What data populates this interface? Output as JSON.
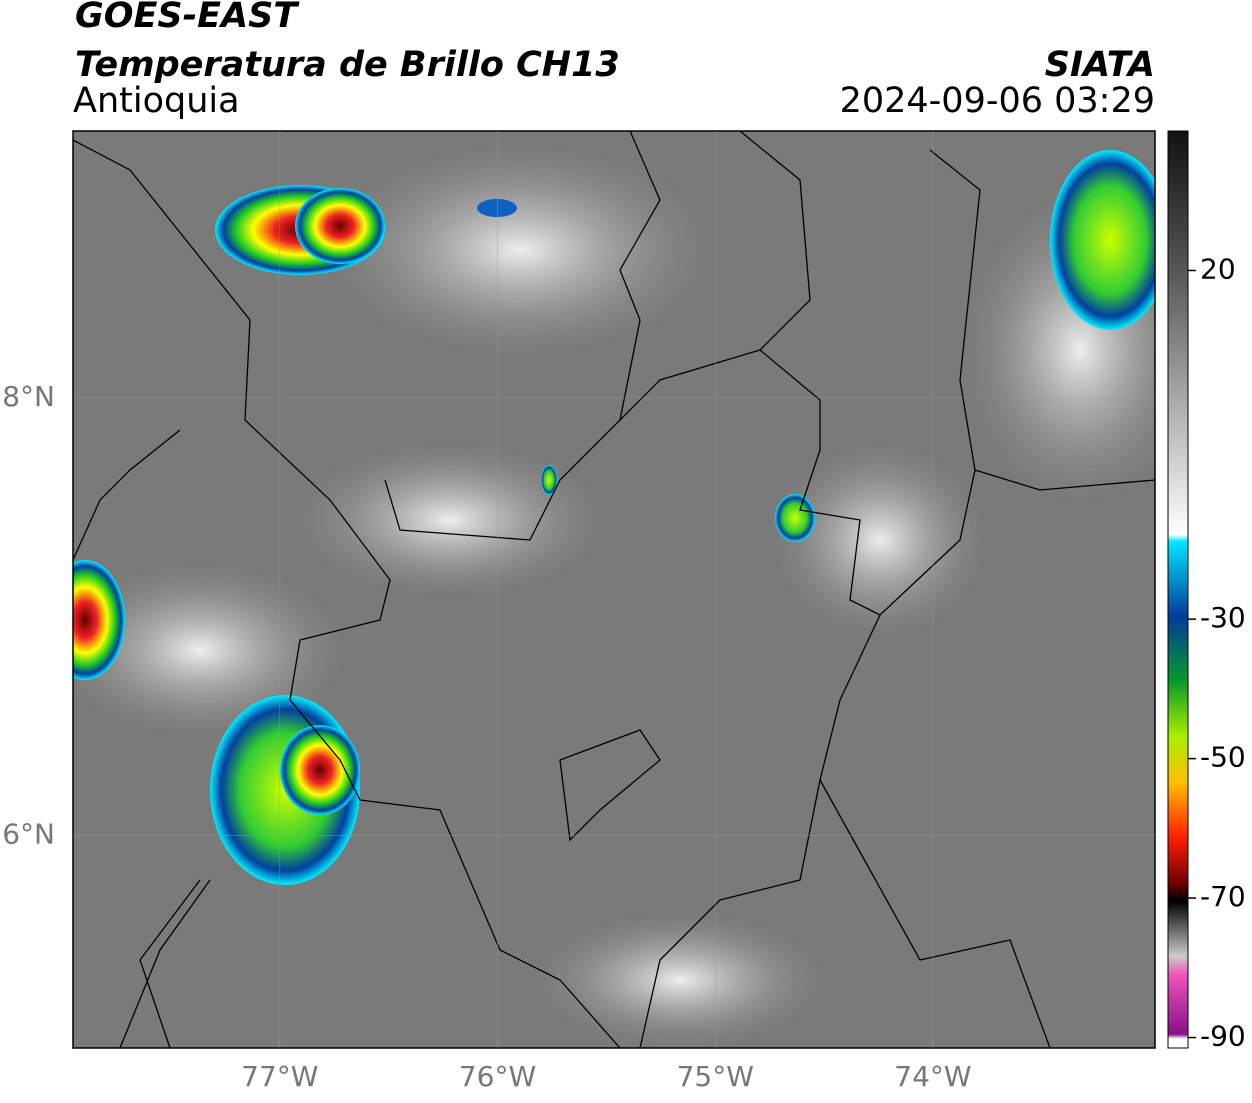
{
  "header": {
    "title": "GOES-EAST",
    "subtitle": "Temperatura de Brillo CH13",
    "region": "Antioquia",
    "source": "SIATA",
    "timestamp": "2024-09-06 03:29"
  },
  "map": {
    "xlim": [
      -77.95,
      -72.98
    ],
    "ylim": [
      5.03,
      9.22
    ],
    "xticks": [
      {
        "value": -77,
        "label": "77°W"
      },
      {
        "value": -76,
        "label": "76°W"
      },
      {
        "value": -75,
        "label": "75°W"
      },
      {
        "value": -74,
        "label": "74°W"
      }
    ],
    "yticks": [
      {
        "value": 6,
        "label": "6°N"
      },
      {
        "value": 8,
        "label": "8°N"
      }
    ]
  },
  "colorbar": {
    "lim": [
      -91.5,
      40
    ],
    "ticks": [
      20,
      -30,
      -50,
      -70,
      -90
    ]
  }
}
